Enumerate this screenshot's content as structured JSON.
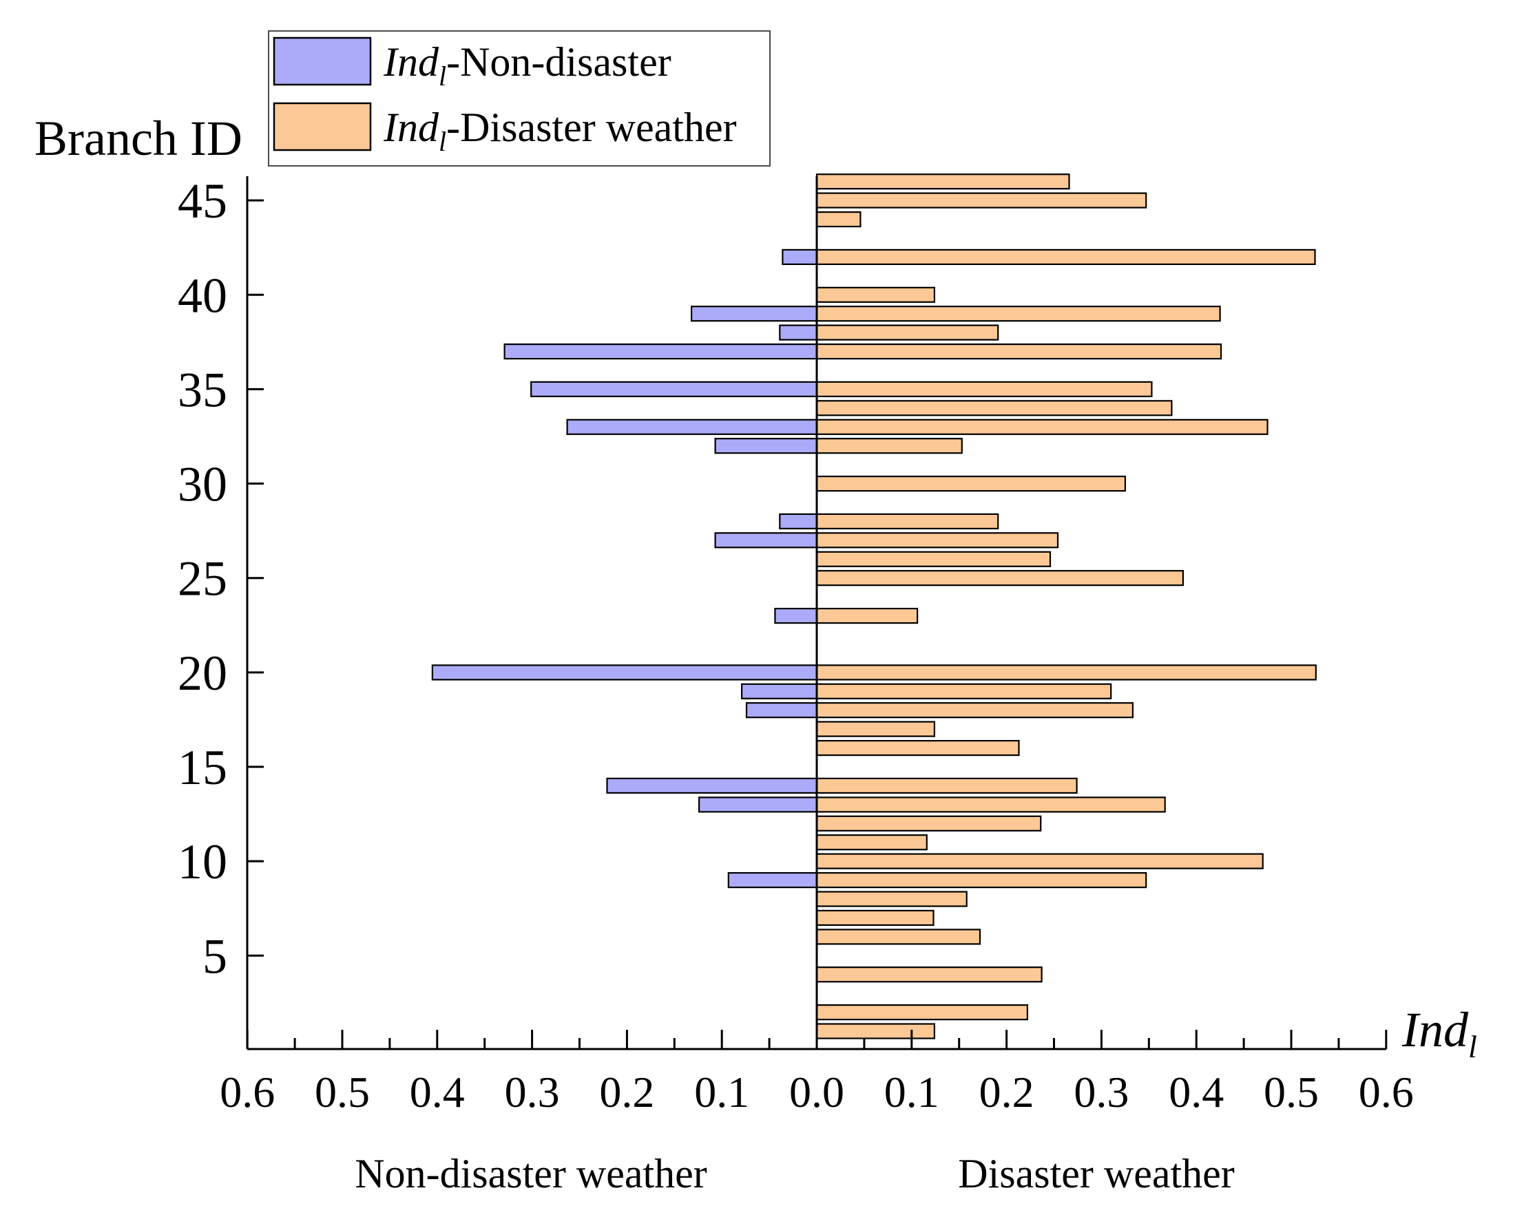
{
  "chart_data": {
    "type": "bar",
    "orientation": "horizontal",
    "ylabel": "Branch ID",
    "xlabel": {
      "main": "Ind",
      "sub": "l"
    },
    "x_side_labels": {
      "left": "Non-disaster weather",
      "right": "Disaster weather"
    },
    "xlim": [
      -0.6,
      0.6
    ],
    "ylim": [
      0.5,
      46.5
    ],
    "xticks": [
      "0.6",
      "0.5",
      "0.4",
      "0.3",
      "0.2",
      "0.1",
      "0.0",
      "0.1",
      "0.2",
      "0.3",
      "0.4",
      "0.5",
      "0.6"
    ],
    "yticks": [
      "5",
      "10",
      "15",
      "20",
      "25",
      "30",
      "35",
      "40",
      "45"
    ],
    "legend": [
      {
        "main": "Ind",
        "sub": "l",
        "rest": "-Non-disaster",
        "color": "#ababf9"
      },
      {
        "main": "Ind",
        "sub": "l",
        "rest": "-Disaster weather",
        "color": "#fcc996"
      }
    ],
    "series": [
      {
        "name": "Non-disaster",
        "color": "#ababf9",
        "points": [
          {
            "branch": 9,
            "value": 0.093
          },
          {
            "branch": 13,
            "value": 0.124
          },
          {
            "branch": 14,
            "value": 0.221
          },
          {
            "branch": 18,
            "value": 0.074
          },
          {
            "branch": 19,
            "value": 0.079
          },
          {
            "branch": 20,
            "value": 0.405
          },
          {
            "branch": 23,
            "value": 0.044
          },
          {
            "branch": 27,
            "value": 0.107
          },
          {
            "branch": 28,
            "value": 0.039
          },
          {
            "branch": 32,
            "value": 0.107
          },
          {
            "branch": 33,
            "value": 0.263
          },
          {
            "branch": 35,
            "value": 0.301
          },
          {
            "branch": 37,
            "value": 0.329
          },
          {
            "branch": 38,
            "value": 0.039
          },
          {
            "branch": 39,
            "value": 0.132
          },
          {
            "branch": 42,
            "value": 0.036
          }
        ]
      },
      {
        "name": "Disaster weather",
        "color": "#fcc996",
        "points": [
          {
            "branch": 1,
            "value": 0.124
          },
          {
            "branch": 2,
            "value": 0.222
          },
          {
            "branch": 4,
            "value": 0.237
          },
          {
            "branch": 6,
            "value": 0.172
          },
          {
            "branch": 7,
            "value": 0.123
          },
          {
            "branch": 8,
            "value": 0.158
          },
          {
            "branch": 9,
            "value": 0.347
          },
          {
            "branch": 10,
            "value": 0.47
          },
          {
            "branch": 11,
            "value": 0.116
          },
          {
            "branch": 12,
            "value": 0.236
          },
          {
            "branch": 13,
            "value": 0.367
          },
          {
            "branch": 14,
            "value": 0.274
          },
          {
            "branch": 16,
            "value": 0.213
          },
          {
            "branch": 17,
            "value": 0.124
          },
          {
            "branch": 18,
            "value": 0.333
          },
          {
            "branch": 19,
            "value": 0.31
          },
          {
            "branch": 20,
            "value": 0.526
          },
          {
            "branch": 23,
            "value": 0.106
          },
          {
            "branch": 25,
            "value": 0.386
          },
          {
            "branch": 26,
            "value": 0.246
          },
          {
            "branch": 27,
            "value": 0.254
          },
          {
            "branch": 28,
            "value": 0.191
          },
          {
            "branch": 30,
            "value": 0.325
          },
          {
            "branch": 32,
            "value": 0.153
          },
          {
            "branch": 33,
            "value": 0.475
          },
          {
            "branch": 34,
            "value": 0.374
          },
          {
            "branch": 35,
            "value": 0.353
          },
          {
            "branch": 37,
            "value": 0.426
          },
          {
            "branch": 38,
            "value": 0.191
          },
          {
            "branch": 39,
            "value": 0.425
          },
          {
            "branch": 40,
            "value": 0.124
          },
          {
            "branch": 42,
            "value": 0.525
          },
          {
            "branch": 44,
            "value": 0.046
          },
          {
            "branch": 45,
            "value": 0.347
          },
          {
            "branch": 46,
            "value": 0.266
          }
        ]
      }
    ]
  }
}
